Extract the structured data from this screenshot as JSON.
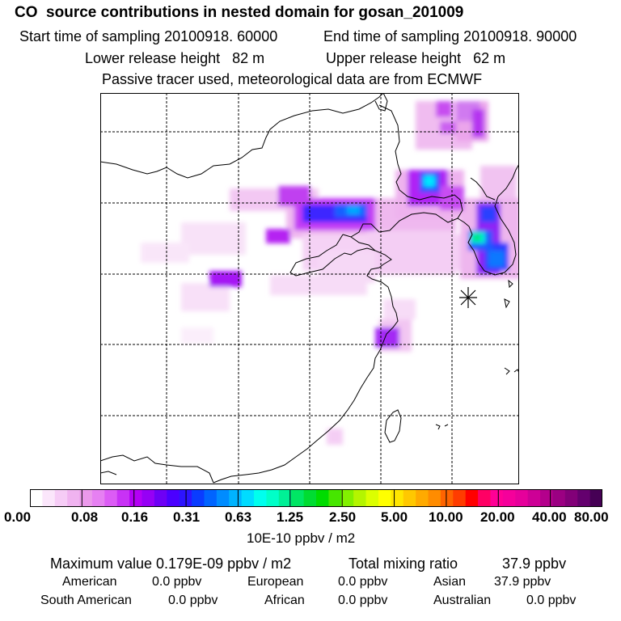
{
  "header": {
    "title": "CO  source contributions in nested domain for gosan_201009",
    "start_time": "Start time of sampling 20100918. 60000",
    "end_time": "End time of sampling 20100918. 90000",
    "lower_height": "Lower release height   82 m",
    "upper_height": "Upper release height   62 m",
    "tracer_note": "Passive tracer used, meteorological data are from ECMWF"
  },
  "colorbar": {
    "tick_labels": [
      "0.00",
      "0.08",
      "0.16",
      "0.31",
      "0.63",
      "1.25",
      "2.50",
      "5.00",
      "10.00",
      "20.00",
      "40.00",
      "80.00"
    ],
    "unit": "10E-10 ppbv / m2",
    "colors": [
      "#ffffff",
      "#fbe6fb",
      "#f6ccf6",
      "#f0b3f0",
      "#eb99eb",
      "#e680f2",
      "#dc5cf5",
      "#c832f5",
      "#b400f5",
      "#9600f5",
      "#6e00f5",
      "#4b00ff",
      "#2d14ff",
      "#0a3cff",
      "#0064ff",
      "#008cff",
      "#00b4ff",
      "#00dcff",
      "#00ffee",
      "#00ffc8",
      "#00f096",
      "#00e664",
      "#00dc32",
      "#00dc00",
      "#46e600",
      "#82f000",
      "#b4f500",
      "#dcff00",
      "#ffff00",
      "#ffe600",
      "#ffc800",
      "#ffaa00",
      "#ff8c00",
      "#ff6400",
      "#ff3c00",
      "#ff0000",
      "#ff0064",
      "#ff0096",
      "#f5009b",
      "#e6009b",
      "#cd0096",
      "#b4008c",
      "#9b0082",
      "#820078",
      "#64006e",
      "#460055"
    ]
  },
  "summary": {
    "max_value": "Maximum value  0.179E-09 ppbv / m2",
    "total_label": "Total mixing ratio",
    "total_value": "37.9 ppbv",
    "regions": [
      {
        "name": "American",
        "value": "0.0 ppbv"
      },
      {
        "name": "European",
        "value": "0.0 ppbv"
      },
      {
        "name": "Asian",
        "value": "37.9 ppbv"
      },
      {
        "name": "South American",
        "value": "0.0 ppbv"
      },
      {
        "name": "African",
        "value": "0.0 ppbv"
      },
      {
        "name": "Australian",
        "value": "0.0 ppbv"
      }
    ]
  },
  "map": {
    "receptor": "gosan",
    "marker_icon": "asterisk-receptor-icon"
  }
}
